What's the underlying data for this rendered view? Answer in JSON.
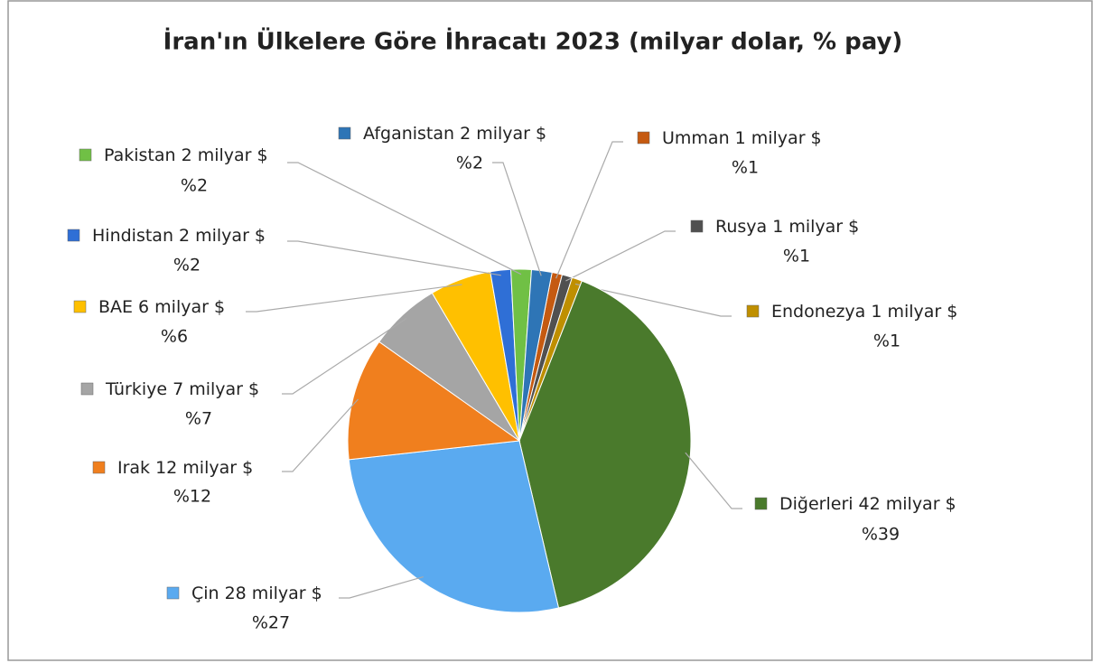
{
  "chart_data": {
    "type": "pie",
    "title": "İran'ın Ülkelere Göre İhracatı 2023 (milyar dolar, % pay)",
    "categories": [
      "Umman",
      "Rusya",
      "Endonezya",
      "Diğerleri",
      "Çin",
      "Irak",
      "Türkiye",
      "BAE",
      "Hindistan",
      "Pakistan",
      "Afganistan"
    ],
    "values": [
      1,
      1,
      1,
      42,
      28,
      12,
      7,
      6,
      2,
      2,
      2
    ],
    "value_labels": [
      "1 milyar $",
      "1 milyar $",
      "1 milyar $",
      "42 milyar $",
      "28 milyar $",
      "12 milyar $",
      "7 milyar $",
      "6 milyar $",
      "2 milyar $",
      "2 milyar $",
      "2 milyar $"
    ],
    "percent_labels": [
      "%1",
      "%1",
      "%1",
      "%39",
      "%27",
      "%12",
      "%7",
      "%6",
      "%2",
      "%2",
      "%2"
    ],
    "colors": [
      "#c55a11",
      "#505050",
      "#bf8f00",
      "#4a7a2c",
      "#5aaaf0",
      "#f07f1e",
      "#a5a5a5",
      "#ffc000",
      "#2f6fd6",
      "#70c045",
      "#2e75b6"
    ]
  }
}
